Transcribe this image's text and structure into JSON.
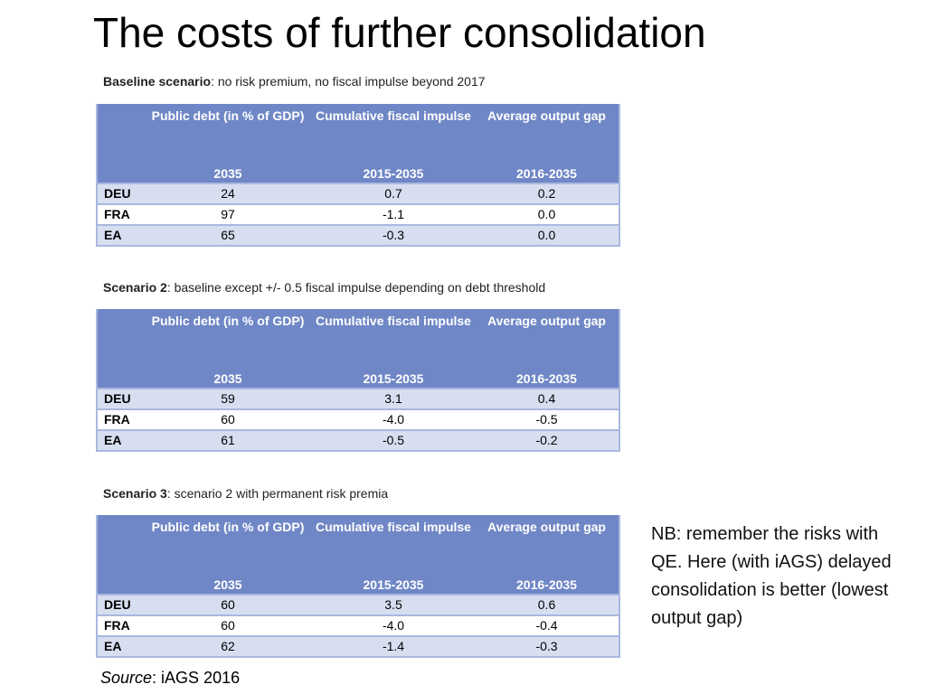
{
  "title": "The costs of further consolidation",
  "scenarios": [
    {
      "label": "Baseline scenario",
      "description": ": no risk premium, no fiscal impulse beyond 2017",
      "headers": [
        "",
        "Public debt (in % of GDP)",
        "Cumulative fiscal impulse",
        "Average output gap"
      ],
      "subheaders": [
        "",
        "2035",
        "2015-2035",
        "2016-2035"
      ],
      "rows": [
        {
          "country": "DEU",
          "debt": "24",
          "impulse": "0.7",
          "gap": "0.2"
        },
        {
          "country": "FRA",
          "debt": "97",
          "impulse": "-1.1",
          "gap": "0.0"
        },
        {
          "country": "EA",
          "debt": "65",
          "impulse": "-0.3",
          "gap": "0.0"
        }
      ]
    },
    {
      "label": "Scenario 2",
      "description": ": baseline except +/- 0.5 fiscal impulse depending on debt threshold",
      "headers": [
        "",
        "Public debt (in % of GDP)",
        "Cumulative fiscal impulse",
        "Average output gap"
      ],
      "subheaders": [
        "",
        "2035",
        "2015-2035",
        "2016-2035"
      ],
      "rows": [
        {
          "country": "DEU",
          "debt": "59",
          "impulse": "3.1",
          "gap": "0.4"
        },
        {
          "country": "FRA",
          "debt": "60",
          "impulse": "-4.0",
          "gap": "-0.5"
        },
        {
          "country": "EA",
          "debt": "61",
          "impulse": "-0.5",
          "gap": "-0.2"
        }
      ]
    },
    {
      "label": "Scenario 3",
      "description": ": scenario 2 with permanent risk premia",
      "headers": [
        "",
        "Public debt (in % of GDP)",
        "Cumulative fiscal impulse",
        "Average output gap"
      ],
      "subheaders": [
        "",
        "2035",
        "2015-2035",
        "2016-2035"
      ],
      "rows": [
        {
          "country": "DEU",
          "debt": "60",
          "impulse": "3.5",
          "gap": "0.6"
        },
        {
          "country": "FRA",
          "debt": "60",
          "impulse": "-4.0",
          "gap": "-0.4"
        },
        {
          "country": "EA",
          "debt": "62",
          "impulse": "-1.4",
          "gap": "-0.3"
        }
      ]
    }
  ],
  "note": "NB: remember the risks with QE. Here (with iAGS) delayed consolidation is better (lowest output gap)",
  "source": {
    "label": "Source",
    "text": ": iAGS 2016"
  }
}
